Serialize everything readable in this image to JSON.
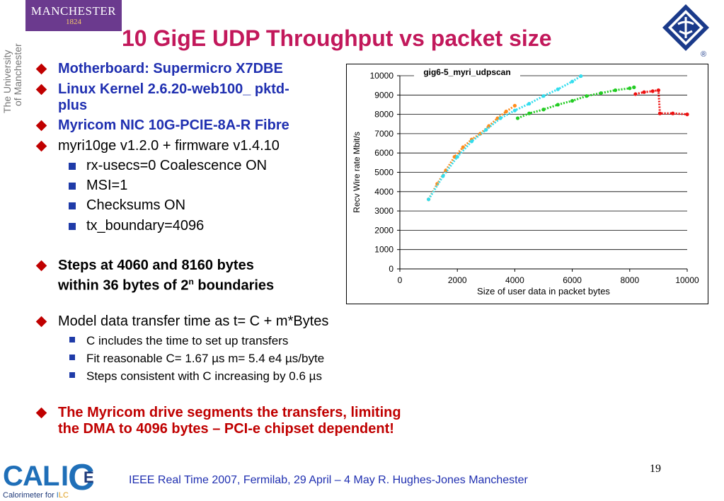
{
  "slide": {
    "title": "10 GigE UDP Throughput vs packet size",
    "university_logo": {
      "name": "MANCHESTER",
      "year": "1824",
      "side_text": [
        "The University",
        "of Manchester"
      ]
    },
    "bullets": [
      {
        "text": "Motherboard: Supermicro X7DBE"
      },
      {
        "text": "Linux Kernel  2.6.20-web100_ pktd-plus"
      },
      {
        "text": "Myricom NIC 10G-PCIE-8A-R Fibre"
      },
      {
        "text": "myri10ge v1.2.0 + firmware v1.4.10"
      },
      {
        "text": "rx-usecs=0  Coalescence ON"
      },
      {
        "text": "MSI=1"
      },
      {
        "text": "Checksums ON"
      },
      {
        "text": "tx_boundary=4096"
      },
      {
        "line1": "Steps at 4060 and 8160 bytes",
        "line2_prefix": "within 36 bytes of 2",
        "line2_sup": "n",
        "line2_suffix": " boundaries"
      },
      {
        "text": "Model data transfer time as t= C + m*Bytes"
      },
      {
        "text": "C includes the time to set up transfers"
      },
      {
        "text": "Fit reasonable C= 1.67 µs m= 5.4 e4 µs/byte"
      },
      {
        "text": "Steps consistent with C increasing by 0.6 µs"
      },
      {
        "text": "The Myricom drive segments the transfers, limiting the DMA to 4096 bytes – PCI-e chipset dependent!"
      }
    ],
    "footer": "IEEE Real Time 2007, Fermilab, 29 April – 4 May  R. Hughes-Jones  Manchester",
    "page_number": "19",
    "calice_logo": {
      "letters": [
        "C",
        "A",
        "L",
        "I",
        "C",
        "E"
      ],
      "caption_prefix": "Calorimeter for ",
      "caption_i": "I",
      "caption_lc": "LC"
    },
    "ieee_mark": "®"
  },
  "colors": {
    "title": "#c2185b",
    "bullet_blue": "#1f2fb0",
    "bullet_red": "#c00000",
    "series_green": "#22cc22",
    "series_red": "#ee1111",
    "series_orange": "#ff8c1a",
    "series_cyan": "#33ddee",
    "logo_purple": "#6b3a8e",
    "logo_navy": "#1a3a8a"
  },
  "chart_data": {
    "type": "scatter",
    "title": "gig6-5_myri_udpscan",
    "xlabel": "Size of user data in packet bytes",
    "ylabel": "Recv Wire rate Mbit/s",
    "xlim": [
      0,
      10000
    ],
    "ylim": [
      0,
      10000
    ],
    "xticks": [
      0,
      2000,
      4000,
      6000,
      8000,
      10000
    ],
    "yticks": [
      0,
      1000,
      2000,
      3000,
      4000,
      5000,
      6000,
      7000,
      8000,
      9000,
      10000
    ],
    "grid": "horizontal",
    "legend": "none",
    "series": [
      {
        "color": "#ff8c1a",
        "x": [
          1000,
          1300,
          1600,
          1900,
          2200,
          2500,
          2800,
          3100,
          3400,
          3700,
          4000
        ],
        "y": [
          3600,
          4400,
          5100,
          5800,
          6300,
          6700,
          7000,
          7400,
          7800,
          8150,
          8450
        ]
      },
      {
        "color": "#33ddee",
        "x": [
          1000,
          1500,
          2000,
          2500,
          3000,
          3500,
          4000,
          4500,
          5000,
          5500,
          6000,
          6300
        ],
        "y": [
          3600,
          4800,
          5800,
          6600,
          7200,
          7800,
          8200,
          8550,
          8950,
          9300,
          9700,
          9980
        ]
      },
      {
        "color": "#22cc22",
        "x": [
          4100,
          4500,
          5000,
          5500,
          6000,
          6500,
          7000,
          7500,
          8000,
          8150
        ],
        "y": [
          7800,
          8050,
          8250,
          8500,
          8700,
          8950,
          9100,
          9250,
          9350,
          9400
        ]
      },
      {
        "color": "#ee1111",
        "x": [
          8200,
          8500,
          8800,
          9000,
          9050,
          9500,
          10000
        ],
        "y": [
          9050,
          9150,
          9200,
          9250,
          8050,
          8050,
          8000
        ]
      }
    ]
  }
}
